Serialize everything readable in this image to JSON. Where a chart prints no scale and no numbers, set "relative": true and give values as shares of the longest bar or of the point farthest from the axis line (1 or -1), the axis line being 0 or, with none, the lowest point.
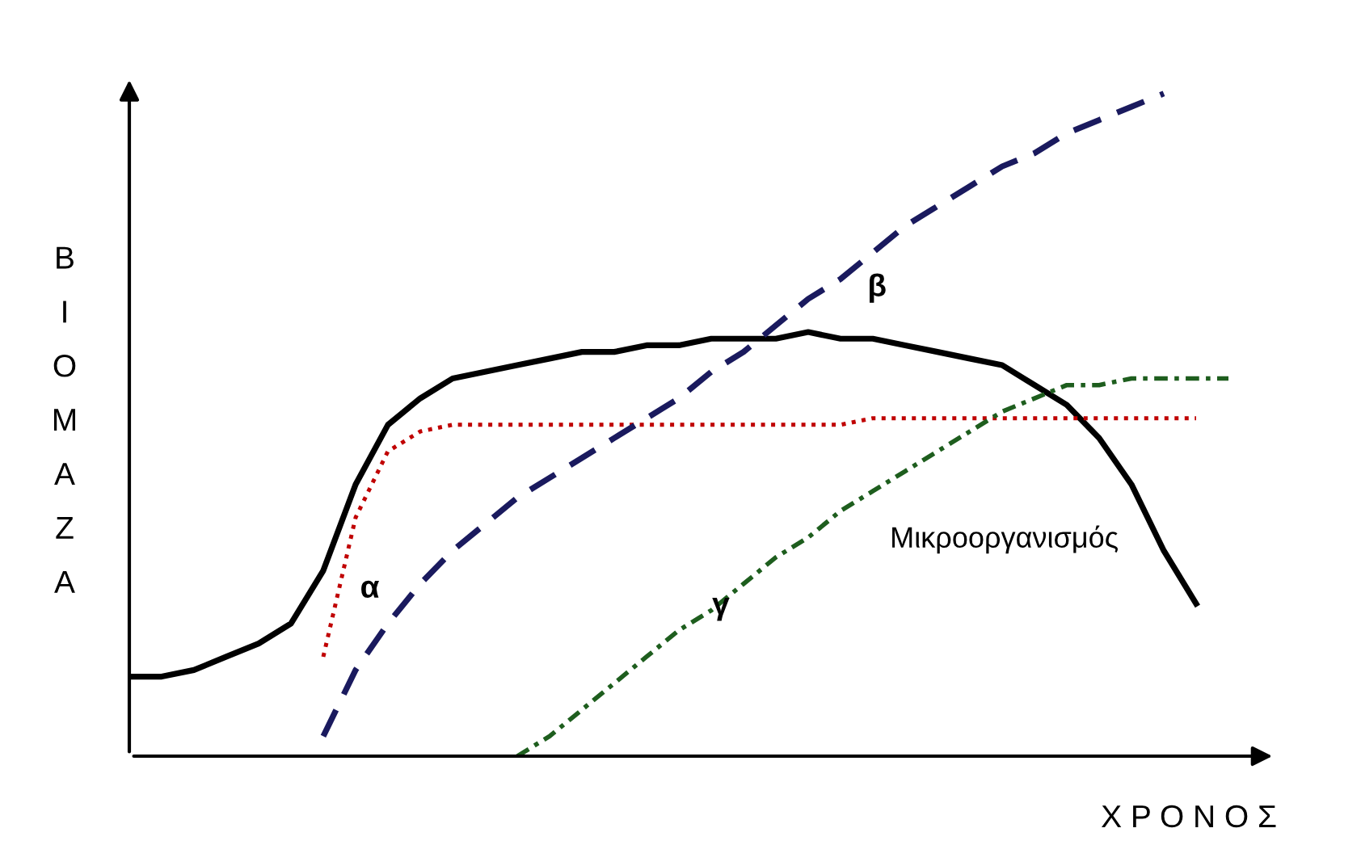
{
  "chart_data": {
    "type": "line",
    "relative": true,
    "xlabel": "Χ Ρ Ο Ν Ο Σ",
    "ylabel": "ΒΙΟΜΑΖΑ",
    "grid": false,
    "legend": false,
    "marker": "none",
    "categories": [
      null,
      null,
      null,
      null,
      null,
      null,
      null,
      null,
      null,
      null,
      null,
      null,
      null,
      null,
      null,
      null,
      null,
      null,
      null,
      null,
      null,
      null,
      null,
      null,
      null,
      null,
      null,
      null,
      null,
      null,
      null,
      null,
      null,
      null,
      null
    ],
    "series": [
      {
        "name": "Μικροοργανισμός",
        "color": "#000000",
        "line_style": "solid",
        "values": [
          0.12,
          0.12,
          0.13,
          0.15,
          0.17,
          0.2,
          0.28,
          0.41,
          0.5,
          0.54,
          0.57,
          0.58,
          0.59,
          0.6,
          0.61,
          0.61,
          0.62,
          0.62,
          0.63,
          0.63,
          0.63,
          0.64,
          0.63,
          0.63,
          0.62,
          0.61,
          0.6,
          0.59,
          0.56,
          0.53,
          0.48,
          0.41,
          0.31,
          0.23,
          null
        ]
      },
      {
        "name": "α",
        "color": "#c00000",
        "line_style": "dotted",
        "values": [
          null,
          null,
          null,
          null,
          null,
          null,
          0.15,
          0.36,
          0.46,
          0.49,
          0.5,
          0.5,
          0.5,
          0.5,
          0.5,
          0.5,
          0.5,
          0.5,
          0.5,
          0.5,
          0.5,
          0.5,
          0.5,
          0.51,
          0.51,
          0.51,
          0.51,
          0.51,
          0.51,
          0.51,
          0.51,
          0.51,
          0.51,
          0.51,
          null
        ]
      },
      {
        "name": "β",
        "color": "#1a1a5e",
        "line_style": "dashed",
        "values": [
          null,
          null,
          null,
          null,
          null,
          null,
          0.03,
          0.13,
          0.2,
          0.26,
          0.31,
          0.35,
          0.39,
          0.42,
          0.45,
          0.48,
          0.51,
          0.54,
          0.58,
          0.61,
          0.65,
          0.69,
          0.72,
          0.76,
          0.8,
          0.83,
          0.86,
          0.89,
          0.91,
          0.94,
          0.96,
          0.98,
          1.0,
          null,
          null
        ]
      },
      {
        "name": "γ",
        "color": "#1e5e1e",
        "line_style": "dashdot",
        "values": [
          null,
          null,
          null,
          null,
          null,
          null,
          null,
          null,
          null,
          null,
          null,
          null,
          0,
          0.03,
          0.07,
          0.11,
          0.15,
          0.19,
          0.22,
          0.26,
          0.3,
          0.33,
          0.37,
          0.4,
          0.43,
          0.46,
          0.49,
          0.52,
          0.54,
          0.56,
          0.56,
          0.57,
          0.57,
          0.57,
          0.57
        ]
      }
    ]
  }
}
